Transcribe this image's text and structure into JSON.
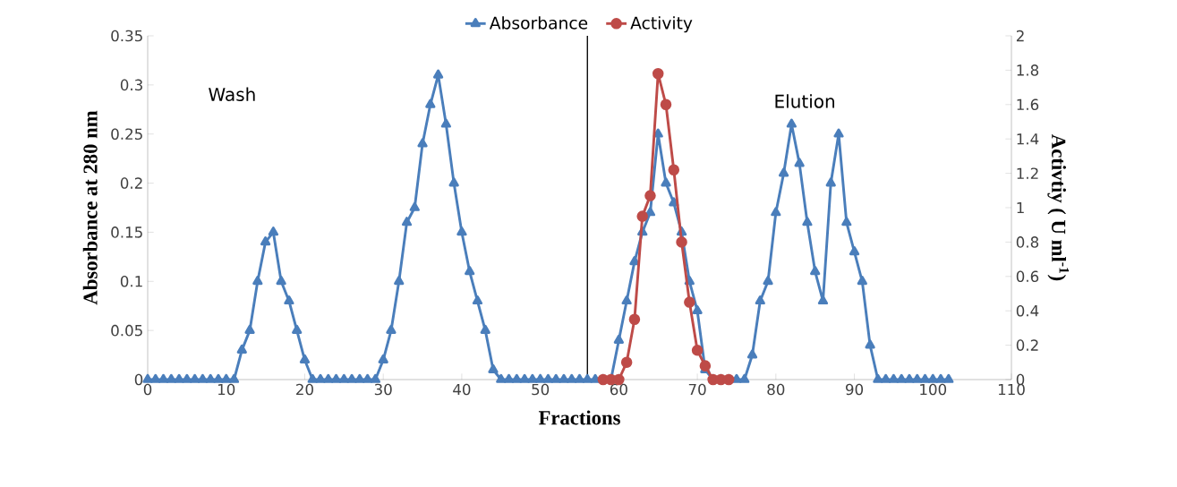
{
  "chart_data": {
    "type": "line",
    "xlabel": "Fractions",
    "ylabel": "Absorbance at 280 nm",
    "y2label": "Activtiy ( U ml$^{-1}$)",
    "xlim": [
      0,
      110
    ],
    "xticks": [
      0,
      10,
      20,
      30,
      40,
      50,
      60,
      70,
      80,
      90,
      100,
      110
    ],
    "ylim": [
      0,
      0.35
    ],
    "yticks": [
      0,
      0.05,
      0.1,
      0.15,
      0.2,
      0.25,
      0.3,
      0.35
    ],
    "y2lim": [
      0,
      2
    ],
    "y2ticks": [
      0,
      0.2,
      0.4,
      0.6,
      0.8,
      1,
      1.2,
      1.4,
      1.6,
      1.8,
      2
    ],
    "legend": "top",
    "line_style": "solid",
    "series": [
      {
        "name": "Absorbance",
        "color": "#4a7ebb",
        "marker": "triangle",
        "x": [
          0,
          1,
          2,
          3,
          4,
          5,
          6,
          7,
          8,
          9,
          10,
          11,
          12,
          13,
          14,
          15,
          16,
          17,
          18,
          19,
          20,
          21,
          22,
          23,
          24,
          25,
          26,
          27,
          28,
          29,
          30,
          31,
          32,
          33,
          34,
          35,
          36,
          37,
          38,
          39,
          40,
          41,
          42,
          43,
          44,
          45,
          46,
          47,
          48,
          49,
          50,
          51,
          52,
          53,
          54,
          55,
          56,
          57,
          58,
          59,
          60,
          61,
          62,
          63,
          64,
          65,
          66,
          67,
          68,
          69,
          70,
          71,
          72,
          73,
          74,
          75,
          76,
          77,
          78,
          79,
          80,
          81,
          82,
          83,
          84,
          85,
          86,
          87,
          88,
          89,
          90,
          91,
          92,
          93,
          94,
          95,
          96,
          97,
          98,
          99,
          100,
          101,
          102
        ],
        "values": [
          0,
          0,
          0,
          0,
          0,
          0,
          0,
          0,
          0,
          0,
          0,
          0,
          0.03,
          0.05,
          0.1,
          0.14,
          0.15,
          0.1,
          0.08,
          0.05,
          0.02,
          0,
          0,
          0,
          0,
          0,
          0,
          0,
          0,
          0,
          0.02,
          0.05,
          0.1,
          0.16,
          0.175,
          0.24,
          0.28,
          0.31,
          0.26,
          0.2,
          0.15,
          0.11,
          0.08,
          0.05,
          0.01,
          0,
          0,
          0,
          0,
          0,
          0,
          0,
          0,
          0,
          0,
          0,
          0,
          0,
          0,
          0,
          0.04,
          0.08,
          0.12,
          0.15,
          0.17,
          0.25,
          0.2,
          0.18,
          0.15,
          0.1,
          0.07,
          0.01,
          0,
          0,
          0,
          0,
          0,
          0.025,
          0.08,
          0.1,
          0.17,
          0.21,
          0.26,
          0.22,
          0.16,
          0.11,
          0.08,
          0.2,
          0.25,
          0.16,
          0.13,
          0.1,
          0.035,
          0,
          0,
          0,
          0,
          0,
          0,
          0,
          0,
          0,
          0
        ]
      },
      {
        "name": "Activity",
        "color": "#be4b48",
        "marker": "circle",
        "axis": "y2",
        "x": [
          58,
          59,
          60,
          61,
          62,
          63,
          64,
          65,
          66,
          67,
          68,
          69,
          70,
          71,
          72,
          73,
          74
        ],
        "values": [
          0,
          0,
          0,
          0.1,
          0.35,
          0.95,
          1.07,
          1.78,
          1.6,
          1.22,
          0.8,
          0.45,
          0.17,
          0.08,
          0,
          0,
          0
        ]
      }
    ],
    "ref_lines": [
      {
        "axis": "x",
        "value": 56,
        "color": "#000000"
      }
    ],
    "annotations": [
      "Wash",
      "Elution"
    ]
  }
}
